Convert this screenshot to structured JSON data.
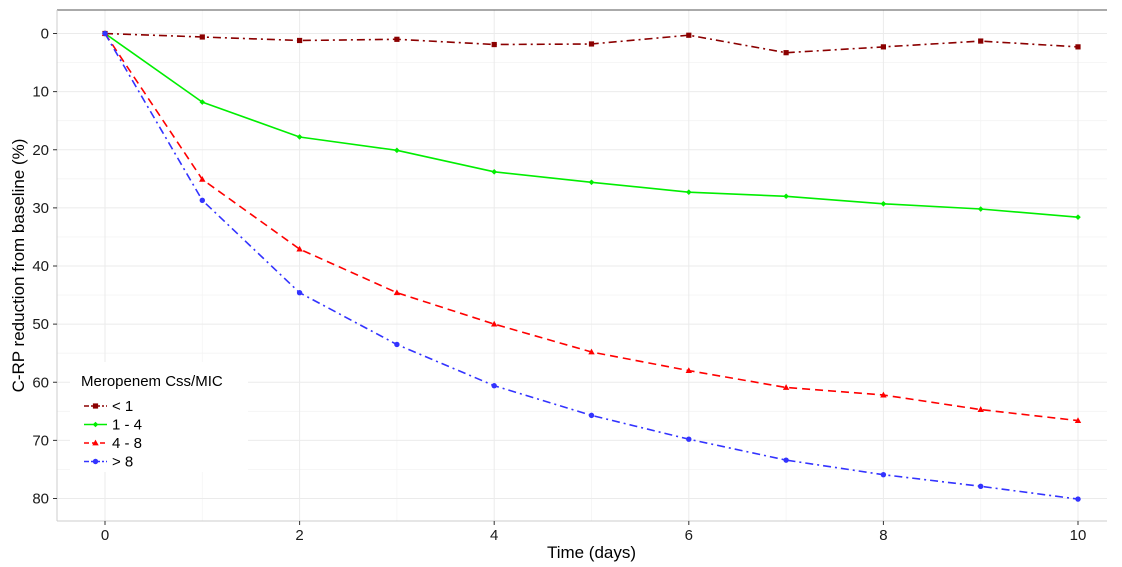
{
  "chart_data": {
    "type": "line",
    "xlabel": "Time (days)",
    "ylabel": "C-RP reduction from baseline (%)",
    "xlim": [
      -0.5,
      10.2
    ],
    "ylim": [
      -4,
      84
    ],
    "y_reversed": true,
    "x_ticks": [
      0,
      2,
      4,
      6,
      8,
      10
    ],
    "y_ticks": [
      0,
      10,
      20,
      30,
      40,
      50,
      60,
      70,
      80
    ],
    "grid": true,
    "legend": {
      "title": "Meropenem Css/MIC",
      "position": "bottom-left"
    },
    "x": [
      0,
      1,
      2,
      3,
      4,
      5,
      6,
      7,
      8,
      9,
      10
    ],
    "series": [
      {
        "name": "< 1",
        "color": "#8b0000",
        "dash": "dashdot",
        "marker": "square",
        "values": [
          0,
          0.6,
          1.2,
          1.0,
          1.9,
          1.8,
          0.3,
          3.3,
          2.3,
          1.3,
          2.3
        ]
      },
      {
        "name": "1 - 4",
        "color": "#00ee00",
        "dash": "solid",
        "marker": "diamond",
        "values": [
          0,
          11.8,
          17.8,
          20.1,
          23.8,
          25.6,
          27.3,
          28.0,
          29.3,
          30.2,
          31.6
        ]
      },
      {
        "name": "4 - 8",
        "color": "#ff0000",
        "dash": "dashed",
        "marker": "triangle",
        "values": [
          0,
          25.1,
          37.1,
          44.6,
          50.0,
          54.8,
          58.0,
          60.9,
          62.2,
          64.7,
          66.6
        ]
      },
      {
        "name": "> 8",
        "color": "#3333ff",
        "dash": "dashdot",
        "marker": "circle",
        "values": [
          0,
          28.7,
          44.6,
          53.5,
          60.6,
          65.7,
          69.8,
          73.4,
          75.9,
          77.9,
          80.1
        ]
      }
    ]
  }
}
